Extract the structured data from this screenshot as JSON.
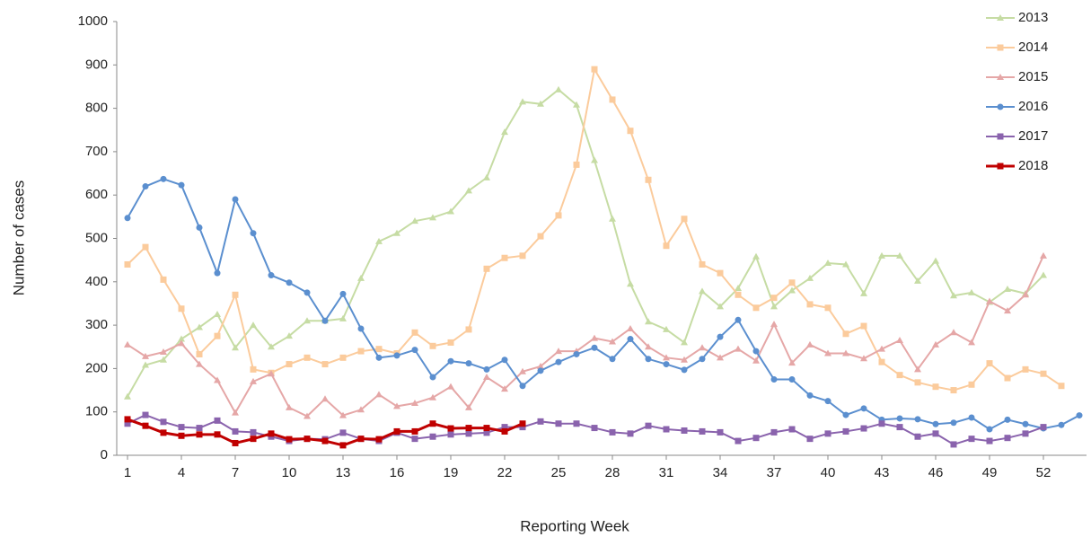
{
  "chart_data": {
    "type": "line",
    "y_label": "Number of cases",
    "x_label": "Reporting Week",
    "x": [
      1,
      2,
      3,
      4,
      5,
      6,
      7,
      8,
      9,
      10,
      11,
      12,
      13,
      14,
      15,
      16,
      17,
      18,
      19,
      20,
      21,
      22,
      23,
      24,
      25,
      26,
      27,
      28,
      29,
      30,
      31,
      32,
      33,
      34,
      35,
      36,
      37,
      38,
      39,
      40,
      41,
      42,
      43,
      44,
      45,
      46,
      47,
      48,
      49,
      50,
      51,
      52,
      53,
      54
    ],
    "xlim": [
      0.4,
      54.4
    ],
    "xticks": [
      1,
      4,
      7,
      10,
      13,
      16,
      19,
      22,
      25,
      28,
      31,
      34,
      37,
      40,
      43,
      46,
      49,
      52
    ],
    "ylim": [
      0,
      1000
    ],
    "yticks": [
      0,
      100,
      200,
      300,
      400,
      500,
      600,
      700,
      800,
      900,
      1000
    ],
    "grid": false,
    "legend": "top-right",
    "series": [
      {
        "name": "2013",
        "color": "#c6dca4",
        "marker": "triangle",
        "values": [
          135,
          208,
          220,
          268,
          295,
          325,
          248,
          300,
          250,
          275,
          310,
          310,
          315,
          408,
          493,
          512,
          540,
          548,
          562,
          610,
          640,
          745,
          815,
          810,
          843,
          808,
          680,
          545,
          395,
          308,
          290,
          260,
          378,
          343,
          385,
          458,
          343,
          380,
          408,
          443,
          440,
          373,
          460,
          460,
          402,
          448,
          368,
          375,
          353,
          383,
          373,
          415,
          null,
          null
        ]
      },
      {
        "name": "2014",
        "color": "#fbcb9c",
        "marker": "square",
        "values": [
          440,
          480,
          405,
          338,
          233,
          275,
          370,
          198,
          190,
          210,
          225,
          210,
          225,
          240,
          245,
          235,
          283,
          252,
          260,
          290,
          430,
          455,
          460,
          505,
          553,
          670,
          890,
          820,
          748,
          635,
          483,
          545,
          440,
          420,
          370,
          340,
          363,
          398,
          348,
          340,
          280,
          298,
          215,
          185,
          168,
          158,
          150,
          163,
          212,
          178,
          198,
          188,
          160,
          null
        ]
      },
      {
        "name": "2015",
        "color": "#e5a7a7",
        "marker": "triangle",
        "values": [
          255,
          228,
          238,
          258,
          210,
          173,
          98,
          170,
          188,
          110,
          90,
          130,
          92,
          105,
          140,
          113,
          120,
          133,
          158,
          110,
          180,
          153,
          193,
          205,
          240,
          240,
          270,
          262,
          292,
          250,
          225,
          220,
          248,
          225,
          245,
          218,
          302,
          213,
          255,
          235,
          235,
          223,
          245,
          265,
          198,
          255,
          283,
          260,
          355,
          333,
          370,
          460,
          null,
          null
        ]
      },
      {
        "name": "2016",
        "color": "#5b8fcf",
        "marker": "circle",
        "values": [
          547,
          620,
          637,
          623,
          525,
          420,
          590,
          512,
          415,
          398,
          375,
          310,
          372,
          292,
          225,
          230,
          243,
          180,
          217,
          212,
          198,
          220,
          160,
          195,
          215,
          233,
          248,
          222,
          268,
          222,
          210,
          197,
          222,
          273,
          312,
          240,
          175,
          175,
          138,
          125,
          93,
          108,
          82,
          85,
          83,
          72,
          75,
          87,
          60,
          82,
          72,
          62,
          70,
          92
        ]
      },
      {
        "name": "2017",
        "color": "#8a63ad",
        "marker": "square",
        "values": [
          73,
          93,
          77,
          65,
          63,
          80,
          55,
          53,
          43,
          33,
          38,
          37,
          52,
          38,
          33,
          52,
          38,
          43,
          48,
          50,
          52,
          65,
          65,
          78,
          73,
          73,
          63,
          53,
          50,
          68,
          60,
          57,
          55,
          53,
          33,
          40,
          53,
          60,
          38,
          50,
          55,
          62,
          73,
          65,
          43,
          50,
          25,
          38,
          33,
          40,
          50,
          65,
          null,
          null
        ]
      },
      {
        "name": "2018",
        "color": "#c00000",
        "marker": "square",
        "values": [
          83,
          68,
          52,
          45,
          48,
          48,
          28,
          38,
          50,
          37,
          38,
          33,
          23,
          38,
          37,
          55,
          55,
          73,
          62,
          63,
          63,
          55,
          73,
          null,
          null,
          null,
          null,
          null,
          null,
          null,
          null,
          null,
          null,
          null,
          null,
          null,
          null,
          null,
          null,
          null,
          null,
          null,
          null,
          null,
          null,
          null,
          null,
          null,
          null,
          null,
          null,
          null,
          null,
          null
        ]
      }
    ]
  }
}
